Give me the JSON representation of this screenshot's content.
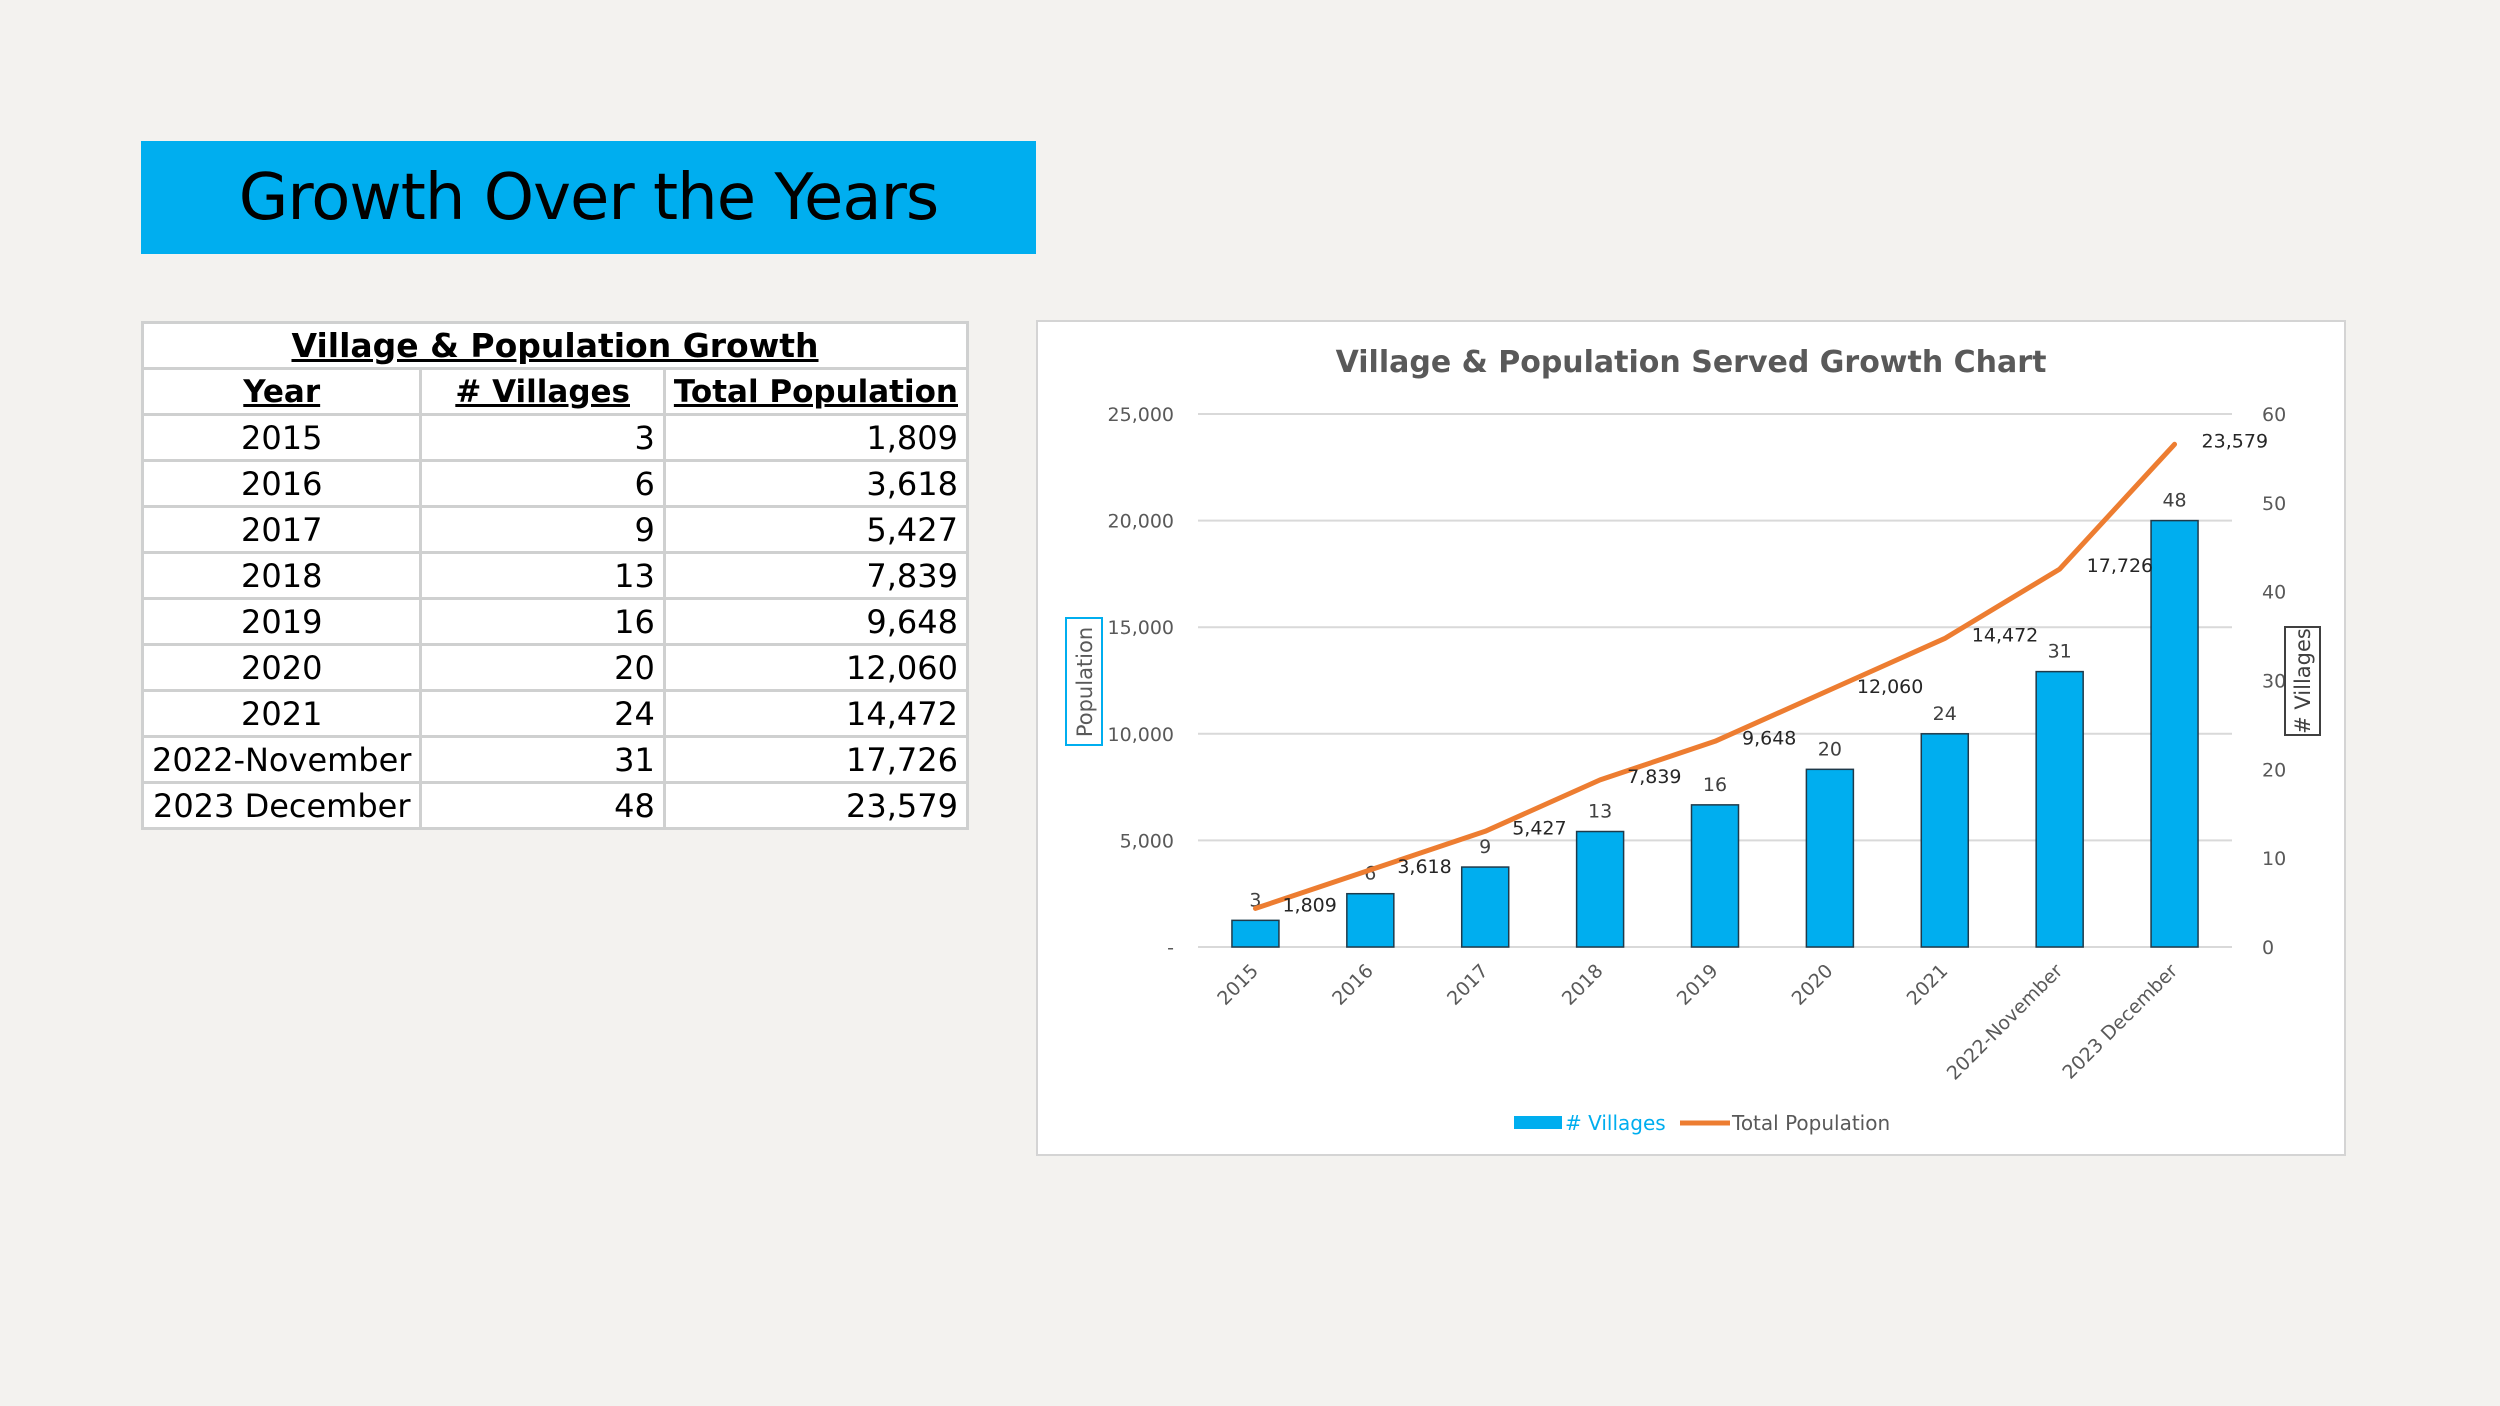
{
  "slide": {
    "title": "Growth Over the Years"
  },
  "table": {
    "caption": "Village & Population Growth",
    "headers": [
      "Year",
      "# Villages",
      "Total Population"
    ],
    "rows": [
      {
        "year": "2015",
        "villages": "3",
        "population": "1,809"
      },
      {
        "year": "2016",
        "villages": "6",
        "population": "3,618"
      },
      {
        "year": "2017",
        "villages": "9",
        "population": "5,427"
      },
      {
        "year": "2018",
        "villages": "13",
        "population": "7,839"
      },
      {
        "year": "2019",
        "villages": "16",
        "population": "9,648"
      },
      {
        "year": "2020",
        "villages": "20",
        "population": "12,060"
      },
      {
        "year": "2021",
        "villages": "24",
        "population": "14,472"
      },
      {
        "year": "2022-November",
        "villages": "31",
        "population": "17,726"
      },
      {
        "year": "2023 December",
        "villages": "48",
        "population": "23,579"
      }
    ]
  },
  "colors": {
    "banner": "#00aeef",
    "bars": "#00aeef",
    "line": "#ed7d31",
    "grid": "#d9d9d9",
    "axis_text": "#595959"
  },
  "chart_data": {
    "type": "bar+line",
    "title": "Village & Population Served Growth Chart",
    "categories": [
      "2015",
      "2016",
      "2017",
      "2018",
      "2019",
      "2020",
      "2021",
      "2022-November",
      "2023 December"
    ],
    "series": [
      {
        "name": "# Villages",
        "type": "bar",
        "axis": "secondary",
        "values": [
          3,
          6,
          9,
          13,
          16,
          20,
          24,
          31,
          48
        ]
      },
      {
        "name": "Total Population",
        "type": "line",
        "axis": "primary",
        "values": [
          1809,
          3618,
          5427,
          7839,
          9648,
          12060,
          14472,
          17726,
          23579
        ]
      }
    ],
    "bar_labels": [
      "3",
      "6",
      "9",
      "13",
      "16",
      "20",
      "24",
      "31",
      "48"
    ],
    "line_labels": [
      "1,809",
      "3,618",
      "5,427",
      "7,839",
      "9,648",
      "12,060",
      "14,472",
      "17,726",
      "23,579"
    ],
    "ylabel": "Population",
    "y2label": "# Villages",
    "ylim": [
      0,
      25000
    ],
    "y2lim": [
      0,
      60
    ],
    "yticks": [
      0,
      5000,
      10000,
      15000,
      20000,
      25000
    ],
    "ytick_labels": [
      "-",
      "5,000",
      "10,000",
      "15,000",
      "20,000",
      "25,000"
    ],
    "y2ticks": [
      0,
      10,
      20,
      30,
      40,
      50,
      60
    ],
    "y2tick_labels": [
      "0",
      "10",
      "20",
      "30",
      "40",
      "50",
      "60"
    ],
    "grid": true,
    "legend": "bottom"
  }
}
